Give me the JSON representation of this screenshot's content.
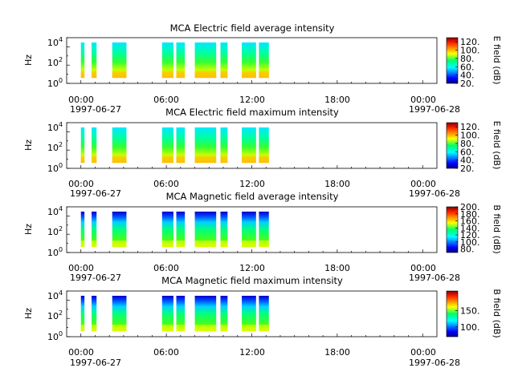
{
  "figure": {
    "time_ticks": [
      "00:00",
      "06:00",
      "12:00",
      "18:00",
      "00:00"
    ],
    "date_labels": [
      "1997-06-27",
      "1997-06-28"
    ]
  },
  "chart_data": [
    {
      "type": "heatmap",
      "title": "MCA  Electric field average intensity",
      "ylabel": "Hz",
      "yscale": "log",
      "ylim": [
        1,
        100000
      ],
      "yticks": [
        "10^0",
        "10^2",
        "10^4"
      ],
      "xlim_hours": [
        -1,
        25
      ],
      "colorbar": {
        "label": "E field (dB)",
        "range": [
          20,
          130
        ],
        "ticks": [
          "20.",
          "40.",
          "60.",
          "80.",
          "100.",
          "120."
        ]
      },
      "data_blocks_hours": [
        [
          0,
          0.25
        ],
        [
          0.75,
          1.1
        ],
        [
          2.2,
          3.2
        ],
        [
          5.7,
          6.5
        ],
        [
          6.7,
          7.3
        ],
        [
          8.0,
          9.5
        ],
        [
          9.8,
          10.3
        ],
        [
          11.3,
          12.3
        ],
        [
          12.5,
          13.2
        ]
      ]
    },
    {
      "type": "heatmap",
      "title": "MCA  Electric field maximum intensity",
      "ylabel": "Hz",
      "yscale": "log",
      "ylim": [
        1,
        100000
      ],
      "yticks": [
        "10^0",
        "10^2",
        "10^4"
      ],
      "xlim_hours": [
        -1,
        25
      ],
      "colorbar": {
        "label": "E field (dB)",
        "range": [
          20,
          130
        ],
        "ticks": [
          "20.",
          "40.",
          "60.",
          "80.",
          "100.",
          "120."
        ]
      },
      "data_blocks_hours": [
        [
          0,
          0.25
        ],
        [
          0.75,
          1.1
        ],
        [
          2.2,
          3.2
        ],
        [
          5.7,
          6.5
        ],
        [
          6.7,
          7.3
        ],
        [
          8.0,
          9.5
        ],
        [
          9.8,
          10.3
        ],
        [
          11.3,
          12.3
        ],
        [
          12.5,
          13.2
        ]
      ]
    },
    {
      "type": "heatmap",
      "title": "MCA  Magnetic field average intensity",
      "ylabel": "Hz",
      "yscale": "log",
      "ylim": [
        1,
        100000
      ],
      "yticks": [
        "10^0",
        "10^2",
        "10^4"
      ],
      "xlim_hours": [
        -1,
        25
      ],
      "colorbar": {
        "label": "B field (dB)",
        "range": [
          70,
          200
        ],
        "ticks": [
          "80.",
          "100.",
          "120.",
          "140.",
          "160.",
          "180.",
          "200."
        ]
      },
      "data_blocks_hours": [
        [
          0,
          0.25
        ],
        [
          0.75,
          1.1
        ],
        [
          2.2,
          3.2
        ],
        [
          5.7,
          6.5
        ],
        [
          6.7,
          7.3
        ],
        [
          8.0,
          9.5
        ],
        [
          9.8,
          10.3
        ],
        [
          11.3,
          12.3
        ],
        [
          12.5,
          13.2
        ]
      ]
    },
    {
      "type": "heatmap",
      "title": "MCA  Magnetic field maximum intensity",
      "ylabel": "Hz",
      "yscale": "log",
      "ylim": [
        1,
        100000
      ],
      "yticks": [
        "10^0",
        "10^2",
        "10^4"
      ],
      "xlim_hours": [
        -1,
        25
      ],
      "colorbar": {
        "label": "B field (dB)",
        "range": [
          70,
          210
        ],
        "ticks": [
          "100.",
          "150."
        ]
      },
      "data_blocks_hours": [
        [
          0,
          0.25
        ],
        [
          0.75,
          1.1
        ],
        [
          2.2,
          3.2
        ],
        [
          5.7,
          6.5
        ],
        [
          6.7,
          7.3
        ],
        [
          8.0,
          9.5
        ],
        [
          9.8,
          10.3
        ],
        [
          11.3,
          12.3
        ],
        [
          12.5,
          13.2
        ]
      ]
    }
  ]
}
